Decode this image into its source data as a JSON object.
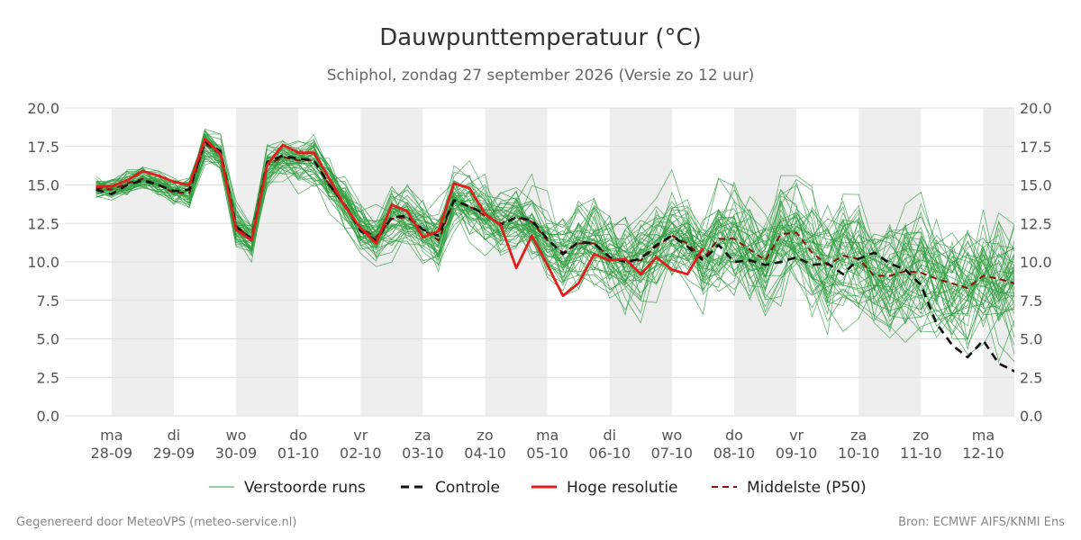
{
  "footer": {
    "left": "Gegenereerd door MeteoVPS (meteo-service.nl)",
    "right": "Bron: ECMWF AIFS/KNMI Ens"
  },
  "colors": {
    "ensemble": "#2e9e3e",
    "control": "#111111",
    "hires": "#e11d1d",
    "median": "#8b0f0f",
    "band": "#eeeeee",
    "grid": "#dddddd"
  },
  "chart_data": {
    "type": "line",
    "title": "Dauwpunttemperatuur (°C)",
    "subtitle": "Schiphol, zondag 27 september 2026 (Versie zo 12 uur)",
    "x_unit": "days since ma 28-09 00:00",
    "xlim": [
      -0.75,
      14.5
    ],
    "ylim": [
      0,
      20
    ],
    "yticks": [
      0.0,
      2.5,
      5.0,
      7.5,
      10.0,
      12.5,
      15.0,
      17.5,
      20.0
    ],
    "ytick_labels": [
      "0.0",
      "2.5",
      "5.0",
      "7.5",
      "10.0",
      "12.5",
      "15.0",
      "17.5",
      "20.0"
    ],
    "grid": true,
    "shaded_days": [
      0,
      2,
      4,
      6,
      8,
      10,
      12,
      14
    ],
    "days": [
      {
        "weekday": "ma",
        "date": "28-09"
      },
      {
        "weekday": "di",
        "date": "29-09"
      },
      {
        "weekday": "wo",
        "date": "30-09"
      },
      {
        "weekday": "do",
        "date": "01-10"
      },
      {
        "weekday": "vr",
        "date": "02-10"
      },
      {
        "weekday": "za",
        "date": "03-10"
      },
      {
        "weekday": "zo",
        "date": "04-10"
      },
      {
        "weekday": "ma",
        "date": "05-10"
      },
      {
        "weekday": "di",
        "date": "06-10"
      },
      {
        "weekday": "wo",
        "date": "07-10"
      },
      {
        "weekday": "do",
        "date": "08-10"
      },
      {
        "weekday": "vr",
        "date": "09-10"
      },
      {
        "weekday": "za",
        "date": "10-10"
      },
      {
        "weekday": "zo",
        "date": "11-10"
      },
      {
        "weekday": "ma",
        "date": "12-10"
      }
    ],
    "legend": [
      {
        "key": "ensemble",
        "label": "Verstoorde runs",
        "style": "thin"
      },
      {
        "key": "control",
        "label": "Controle",
        "style": "dashed"
      },
      {
        "key": "hires",
        "label": "Hoge resolutie",
        "style": "solid"
      },
      {
        "key": "median",
        "label": "Middelste (P50)",
        "style": "dashed"
      }
    ],
    "ensemble": {
      "name": "Verstoorde runs",
      "members": 50,
      "x_start": -0.25,
      "x_step": 0.25,
      "spread_note": "members scatter around the median with spread growing from ~0.7 °C on day 0 to ~4 °C by day 14"
    },
    "series": [
      {
        "name": "Controle",
        "key": "control",
        "points": [
          [
            -0.25,
            14.7
          ],
          [
            0,
            14.4
          ],
          [
            0.25,
            15.0
          ],
          [
            0.5,
            15.3
          ],
          [
            0.75,
            15.0
          ],
          [
            1,
            14.6
          ],
          [
            1.25,
            14.7
          ],
          [
            1.5,
            17.8
          ],
          [
            1.75,
            17.2
          ],
          [
            2,
            12.3
          ],
          [
            2.25,
            11.5
          ],
          [
            2.5,
            16.5
          ],
          [
            2.75,
            16.9
          ],
          [
            3,
            16.7
          ],
          [
            3.25,
            16.6
          ],
          [
            3.5,
            15.0
          ],
          [
            3.75,
            13.7
          ],
          [
            4,
            12.0
          ],
          [
            4.25,
            11.4
          ],
          [
            4.5,
            12.9
          ],
          [
            4.75,
            13.0
          ],
          [
            5,
            12.1
          ],
          [
            5.25,
            11.7
          ],
          [
            5.5,
            14.0
          ],
          [
            5.75,
            13.6
          ],
          [
            6,
            13.1
          ],
          [
            6.25,
            12.4
          ],
          [
            6.5,
            12.9
          ],
          [
            6.75,
            12.7
          ],
          [
            7,
            11.5
          ],
          [
            7.25,
            10.5
          ],
          [
            7.5,
            11.3
          ],
          [
            7.75,
            11.2
          ],
          [
            8,
            10.3
          ],
          [
            8.25,
            10.0
          ],
          [
            8.5,
            10.2
          ],
          [
            8.75,
            11.1
          ],
          [
            9,
            11.7
          ],
          [
            9.25,
            11.0
          ],
          [
            9.5,
            10.1
          ],
          [
            9.75,
            11.1
          ],
          [
            10,
            10.0
          ],
          [
            10.25,
            10.1
          ],
          [
            10.5,
            9.8
          ],
          [
            10.75,
            10.0
          ],
          [
            11,
            10.3
          ],
          [
            11.25,
            9.8
          ],
          [
            11.5,
            9.9
          ],
          [
            11.75,
            9.2
          ],
          [
            12,
            10.2
          ],
          [
            12.25,
            10.6
          ],
          [
            12.5,
            9.9
          ],
          [
            12.75,
            9.5
          ],
          [
            13,
            8.5
          ],
          [
            13.25,
            6.0
          ],
          [
            13.5,
            4.6
          ],
          [
            13.75,
            3.8
          ],
          [
            14,
            4.9
          ],
          [
            14.25,
            3.4
          ],
          [
            14.5,
            2.9
          ],
          [
            14.75,
            2.4
          ],
          [
            15,
            4.5
          ]
        ]
      },
      {
        "name": "Hoge resolutie",
        "key": "hires",
        "points": [
          [
            -0.25,
            14.9
          ],
          [
            0,
            14.9
          ],
          [
            0.25,
            15.3
          ],
          [
            0.5,
            15.9
          ],
          [
            0.75,
            15.6
          ],
          [
            1,
            15.2
          ],
          [
            1.25,
            15.0
          ],
          [
            1.5,
            18.0
          ],
          [
            1.75,
            17.0
          ],
          [
            2,
            12.1
          ],
          [
            2.25,
            11.4
          ],
          [
            2.5,
            16.3
          ],
          [
            2.75,
            17.6
          ],
          [
            3,
            17.1
          ],
          [
            3.25,
            17.1
          ],
          [
            3.5,
            15.4
          ],
          [
            3.75,
            13.6
          ],
          [
            4,
            12.2
          ],
          [
            4.25,
            11.2
          ],
          [
            4.5,
            13.7
          ],
          [
            4.75,
            13.3
          ],
          [
            5,
            11.6
          ],
          [
            5.25,
            12.0
          ],
          [
            5.5,
            15.1
          ],
          [
            5.75,
            14.8
          ],
          [
            6,
            13.1
          ],
          [
            6.25,
            12.4
          ],
          [
            6.5,
            9.6
          ],
          [
            6.75,
            11.7
          ],
          [
            7,
            9.8
          ],
          [
            7.25,
            7.8
          ],
          [
            7.5,
            8.6
          ],
          [
            7.75,
            10.5
          ],
          [
            8,
            10.1
          ],
          [
            8.25,
            10.2
          ],
          [
            8.5,
            9.2
          ],
          [
            8.75,
            10.3
          ],
          [
            9,
            9.5
          ],
          [
            9.25,
            9.2
          ],
          [
            9.5,
            10.9
          ]
        ]
      },
      {
        "name": "Middelste (P50)",
        "key": "median",
        "points": [
          [
            -0.25,
            14.8
          ],
          [
            0,
            14.7
          ],
          [
            0.25,
            15.1
          ],
          [
            0.5,
            15.4
          ],
          [
            0.75,
            15.0
          ],
          [
            1,
            14.5
          ],
          [
            1.25,
            14.5
          ],
          [
            1.5,
            17.7
          ],
          [
            1.75,
            17.0
          ],
          [
            2,
            12.3
          ],
          [
            2.25,
            11.5
          ],
          [
            2.5,
            16.3
          ],
          [
            2.75,
            16.8
          ],
          [
            3,
            16.6
          ],
          [
            3.25,
            16.6
          ],
          [
            3.5,
            15.0
          ],
          [
            3.75,
            13.6
          ],
          [
            4,
            12.2
          ],
          [
            4.25,
            11.6
          ],
          [
            4.5,
            12.8
          ],
          [
            4.75,
            12.9
          ],
          [
            5,
            12.1
          ],
          [
            5.25,
            11.4
          ],
          [
            5.5,
            14.0
          ],
          [
            5.75,
            13.6
          ],
          [
            6,
            13.0
          ],
          [
            6.25,
            12.5
          ],
          [
            6.5,
            12.9
          ],
          [
            6.75,
            12.6
          ],
          [
            7,
            11.4
          ],
          [
            7.25,
            10.6
          ],
          [
            7.5,
            11.2
          ],
          [
            7.75,
            11.2
          ],
          [
            8,
            10.3
          ],
          [
            8.25,
            10.0
          ],
          [
            8.5,
            10.1
          ],
          [
            8.75,
            11.0
          ],
          [
            9,
            11.7
          ],
          [
            9.25,
            11.2
          ],
          [
            9.5,
            10.2
          ],
          [
            9.75,
            11.5
          ],
          [
            10,
            11.5
          ],
          [
            10.25,
            10.8
          ],
          [
            10.5,
            10.1
          ],
          [
            10.75,
            11.8
          ],
          [
            11,
            11.9
          ],
          [
            11.25,
            10.6
          ],
          [
            11.5,
            9.8
          ],
          [
            11.75,
            10.4
          ],
          [
            12,
            10.2
          ],
          [
            12.25,
            9.1
          ],
          [
            12.5,
            9.1
          ],
          [
            12.75,
            9.4
          ],
          [
            13,
            9.3
          ],
          [
            13.25,
            8.9
          ],
          [
            13.5,
            8.6
          ],
          [
            13.75,
            8.3
          ],
          [
            14,
            9.1
          ],
          [
            14.25,
            8.9
          ],
          [
            14.5,
            8.6
          ],
          [
            14.75,
            8.6
          ],
          [
            15,
            9.5
          ]
        ]
      }
    ]
  }
}
